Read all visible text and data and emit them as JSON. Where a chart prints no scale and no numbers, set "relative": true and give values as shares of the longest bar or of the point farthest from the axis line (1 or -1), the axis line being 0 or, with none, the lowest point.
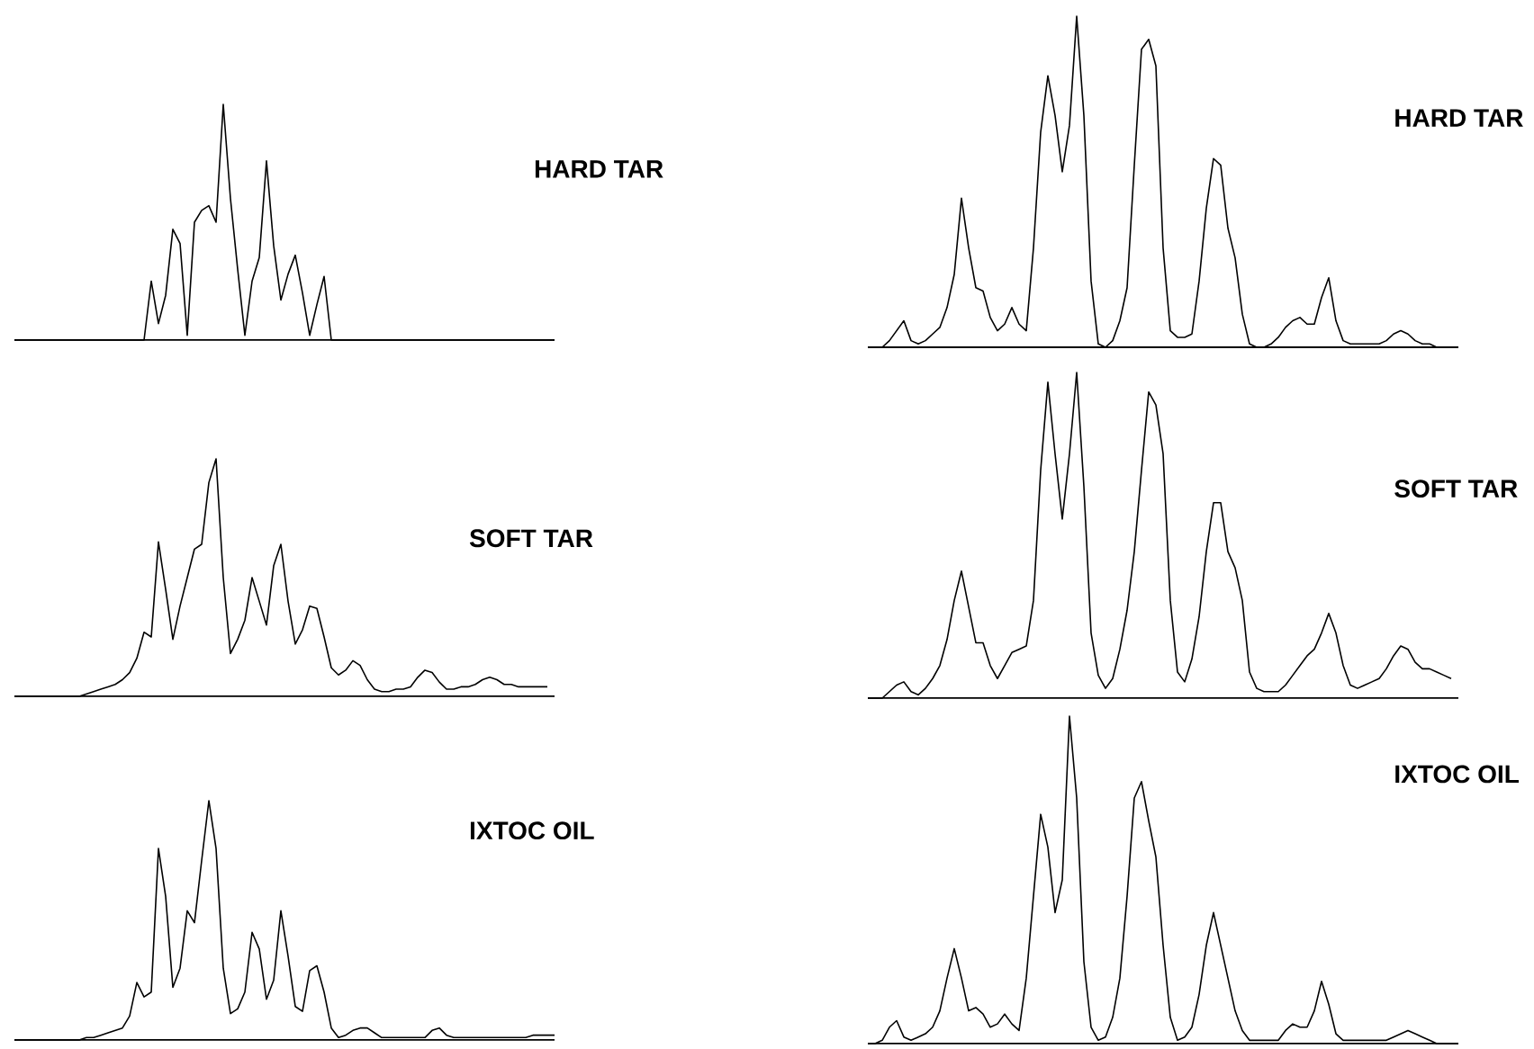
{
  "chart_data": [
    {
      "type": "line",
      "title": "HARD TAR",
      "relative": true,
      "color": "#000000",
      "categories": [
        null,
        null,
        null,
        null,
        null,
        null,
        null,
        null,
        null,
        null,
        null,
        null,
        null,
        null,
        null,
        null,
        null,
        null,
        null,
        null,
        null,
        null,
        null,
        null,
        null,
        null,
        null,
        null,
        null,
        null,
        null,
        null,
        null,
        null,
        null,
        null,
        null,
        null,
        null,
        null,
        null,
        null,
        null,
        null,
        null,
        null,
        null,
        null,
        null,
        null,
        null,
        null,
        null,
        null,
        null,
        null,
        null,
        null,
        null,
        null,
        null,
        null,
        null,
        null,
        null,
        null,
        null,
        null,
        null,
        null,
        null,
        null,
        null,
        null,
        null,
        null
      ],
      "values": [
        0,
        0,
        0,
        0,
        0,
        0,
        0,
        0,
        0,
        0,
        0,
        0,
        0,
        0,
        0,
        0,
        0,
        0,
        0,
        0.25,
        0.07,
        0.19,
        0.47,
        0.41,
        0.02,
        0.5,
        0.55,
        0.57,
        0.5,
        1.0,
        0.6,
        0.3,
        0.02,
        0.25,
        0.35,
        0.76,
        0.4,
        0.17,
        0.28,
        0.36,
        0.2,
        0.02,
        0.15,
        0.27,
        0,
        0,
        0,
        0,
        0,
        0,
        0,
        0,
        0,
        0,
        0,
        0,
        0,
        0,
        0,
        0,
        0,
        0,
        0,
        0,
        0,
        0,
        0,
        0,
        0,
        0,
        0,
        0,
        0,
        0,
        0,
        0
      ]
    },
    {
      "type": "line",
      "title": "HARD TAR",
      "relative": true,
      "color": "#000000",
      "categories": [
        null,
        null,
        null,
        null,
        null,
        null,
        null,
        null,
        null,
        null,
        null,
        null,
        null,
        null,
        null,
        null,
        null,
        null,
        null,
        null,
        null,
        null,
        null,
        null,
        null,
        null,
        null,
        null,
        null,
        null,
        null,
        null,
        null,
        null,
        null,
        null,
        null,
        null,
        null,
        null,
        null,
        null,
        null,
        null,
        null,
        null,
        null,
        null,
        null,
        null,
        null,
        null,
        null,
        null,
        null,
        null,
        null,
        null,
        null,
        null,
        null,
        null,
        null,
        null,
        null,
        null,
        null,
        null,
        null,
        null,
        null,
        null,
        null,
        null,
        null,
        null,
        null,
        null,
        null,
        null,
        null,
        null,
        null
      ],
      "values": [
        0,
        0,
        0,
        0.02,
        0.05,
        0.08,
        0.02,
        0.01,
        0.02,
        0.04,
        0.06,
        0.12,
        0.22,
        0.45,
        0.3,
        0.18,
        0.17,
        0.09,
        0.05,
        0.07,
        0.12,
        0.07,
        0.05,
        0.3,
        0.65,
        0.82,
        0.7,
        0.53,
        0.67,
        1.0,
        0.7,
        0.2,
        0.01,
        0,
        0.02,
        0.08,
        0.18,
        0.55,
        0.9,
        0.93,
        0.85,
        0.3,
        0.05,
        0.03,
        0.03,
        0.04,
        0.2,
        0.42,
        0.57,
        0.55,
        0.36,
        0.27,
        0.1,
        0.01,
        0,
        0,
        0.01,
        0.03,
        0.06,
        0.08,
        0.09,
        0.07,
        0.07,
        0.15,
        0.21,
        0.08,
        0.02,
        0.01,
        0.01,
        0.01,
        0.01,
        0.01,
        0.02,
        0.04,
        0.05,
        0.04,
        0.02,
        0.01,
        0.01,
        0,
        0,
        0,
        0
      ]
    },
    {
      "type": "line",
      "title": "SOFT TAR",
      "relative": true,
      "color": "#000000",
      "categories": [
        null,
        null,
        null,
        null,
        null,
        null,
        null,
        null,
        null,
        null,
        null,
        null,
        null,
        null,
        null,
        null,
        null,
        null,
        null,
        null,
        null,
        null,
        null,
        null,
        null,
        null,
        null,
        null,
        null,
        null,
        null,
        null,
        null,
        null,
        null,
        null,
        null,
        null,
        null,
        null,
        null,
        null,
        null,
        null,
        null,
        null,
        null,
        null,
        null,
        null,
        null,
        null,
        null,
        null,
        null,
        null,
        null,
        null,
        null,
        null,
        null,
        null,
        null,
        null,
        null,
        null,
        null,
        null,
        null,
        null,
        null,
        null,
        null,
        null,
        null,
        null
      ],
      "values": [
        0,
        0,
        0,
        0,
        0,
        0,
        0,
        0,
        0,
        0,
        0.01,
        0.02,
        0.03,
        0.04,
        0.05,
        0.07,
        0.1,
        0.16,
        0.27,
        0.25,
        0.65,
        0.45,
        0.24,
        0.38,
        0.5,
        0.62,
        0.64,
        0.9,
        1.0,
        0.5,
        0.18,
        0.24,
        0.32,
        0.5,
        0.4,
        0.3,
        0.55,
        0.64,
        0.4,
        0.22,
        0.28,
        0.38,
        0.37,
        0.25,
        0.12,
        0.09,
        0.11,
        0.15,
        0.13,
        0.07,
        0.03,
        0.02,
        0.02,
        0.03,
        0.03,
        0.04,
        0.08,
        0.11,
        0.1,
        0.06,
        0.03,
        0.03,
        0.04,
        0.04,
        0.05,
        0.07,
        0.08,
        0.07,
        0.05,
        0.05,
        0.04,
        0.04,
        0.04,
        0.04,
        0.04,
        null
      ]
    },
    {
      "type": "line",
      "title": "SOFT TAR",
      "relative": true,
      "color": "#000000",
      "categories": [
        null,
        null,
        null,
        null,
        null,
        null,
        null,
        null,
        null,
        null,
        null,
        null,
        null,
        null,
        null,
        null,
        null,
        null,
        null,
        null,
        null,
        null,
        null,
        null,
        null,
        null,
        null,
        null,
        null,
        null,
        null,
        null,
        null,
        null,
        null,
        null,
        null,
        null,
        null,
        null,
        null,
        null,
        null,
        null,
        null,
        null,
        null,
        null,
        null,
        null,
        null,
        null,
        null,
        null,
        null,
        null,
        null,
        null,
        null,
        null,
        null,
        null,
        null,
        null,
        null,
        null,
        null,
        null,
        null,
        null,
        null,
        null,
        null,
        null,
        null,
        null,
        null,
        null,
        null,
        null,
        null,
        null,
        null
      ],
      "values": [
        0,
        0,
        0,
        0.02,
        0.04,
        0.05,
        0.02,
        0.01,
        0.03,
        0.06,
        0.1,
        0.18,
        0.3,
        0.39,
        0.28,
        0.17,
        0.17,
        0.1,
        0.06,
        0.1,
        0.14,
        0.15,
        0.16,
        0.3,
        0.7,
        0.97,
        0.75,
        0.55,
        0.75,
        1.0,
        0.65,
        0.2,
        0.07,
        0.03,
        0.06,
        0.15,
        0.27,
        0.45,
        0.7,
        0.94,
        0.9,
        0.75,
        0.3,
        0.08,
        0.05,
        0.12,
        0.25,
        0.45,
        0.6,
        0.6,
        0.45,
        0.4,
        0.3,
        0.08,
        0.03,
        0.02,
        0.02,
        0.02,
        0.04,
        0.07,
        0.1,
        0.13,
        0.15,
        0.2,
        0.26,
        0.2,
        0.1,
        0.04,
        0.03,
        0.04,
        0.05,
        0.06,
        0.09,
        0.13,
        0.16,
        0.15,
        0.11,
        0.09,
        0.09,
        0.08,
        0.07,
        0.06,
        null
      ]
    },
    {
      "type": "line",
      "title": "IXTOC OIL",
      "relative": true,
      "color": "#000000",
      "categories": [
        null,
        null,
        null,
        null,
        null,
        null,
        null,
        null,
        null,
        null,
        null,
        null,
        null,
        null,
        null,
        null,
        null,
        null,
        null,
        null,
        null,
        null,
        null,
        null,
        null,
        null,
        null,
        null,
        null,
        null,
        null,
        null,
        null,
        null,
        null,
        null,
        null,
        null,
        null,
        null,
        null,
        null,
        null,
        null,
        null,
        null,
        null,
        null,
        null,
        null,
        null,
        null,
        null,
        null,
        null,
        null,
        null,
        null,
        null,
        null,
        null,
        null,
        null,
        null,
        null,
        null,
        null,
        null,
        null,
        null,
        null,
        null,
        null,
        null,
        null,
        null
      ],
      "values": [
        0,
        0,
        0,
        0,
        0,
        0,
        0,
        0,
        0,
        0,
        0.01,
        0.01,
        0.02,
        0.03,
        0.04,
        0.05,
        0.1,
        0.24,
        0.18,
        0.2,
        0.8,
        0.6,
        0.22,
        0.3,
        0.54,
        0.49,
        0.75,
        1.0,
        0.8,
        0.3,
        0.11,
        0.13,
        0.2,
        0.45,
        0.38,
        0.17,
        0.25,
        0.54,
        0.35,
        0.14,
        0.12,
        0.29,
        0.31,
        0.2,
        0.05,
        0.01,
        0.02,
        0.04,
        0.05,
        0.05,
        0.03,
        0.01,
        0.01,
        0.01,
        0.01,
        0.01,
        0.01,
        0.01,
        0.04,
        0.05,
        0.02,
        0.01,
        0.01,
        0.01,
        0.01,
        0.01,
        0.01,
        0.01,
        0.01,
        0.01,
        0.01,
        0.01,
        0.02,
        0.02,
        0.02,
        0.02
      ]
    },
    {
      "type": "line",
      "title": "IXTOC OIL",
      "relative": true,
      "color": "#000000",
      "categories": [
        null,
        null,
        null,
        null,
        null,
        null,
        null,
        null,
        null,
        null,
        null,
        null,
        null,
        null,
        null,
        null,
        null,
        null,
        null,
        null,
        null,
        null,
        null,
        null,
        null,
        null,
        null,
        null,
        null,
        null,
        null,
        null,
        null,
        null,
        null,
        null,
        null,
        null,
        null,
        null,
        null,
        null,
        null,
        null,
        null,
        null,
        null,
        null,
        null,
        null,
        null,
        null,
        null,
        null,
        null,
        null,
        null,
        null,
        null,
        null,
        null,
        null,
        null,
        null,
        null,
        null,
        null,
        null,
        null,
        null,
        null,
        null,
        null,
        null,
        null,
        null,
        null,
        null,
        null,
        null,
        null,
        null,
        null
      ],
      "values": [
        0,
        0,
        0.01,
        0.05,
        0.07,
        0.02,
        0.01,
        0.02,
        0.03,
        0.05,
        0.1,
        0.2,
        0.29,
        0.2,
        0.1,
        0.11,
        0.09,
        0.05,
        0.06,
        0.09,
        0.06,
        0.04,
        0.2,
        0.45,
        0.7,
        0.6,
        0.4,
        0.5,
        1.0,
        0.75,
        0.25,
        0.05,
        0.01,
        0.02,
        0.08,
        0.2,
        0.45,
        0.75,
        0.8,
        0.68,
        0.57,
        0.3,
        0.08,
        0.01,
        0.02,
        0.05,
        0.15,
        0.3,
        0.4,
        0.3,
        0.2,
        0.1,
        0.04,
        0.01,
        0.01,
        0.01,
        0.01,
        0.01,
        0.04,
        0.06,
        0.05,
        0.05,
        0.1,
        0.19,
        0.12,
        0.03,
        0.01,
        0.01,
        0.01,
        0.01,
        0.01,
        0.01,
        0.01,
        0.02,
        0.03,
        0.04,
        0.03,
        0.02,
        0.01,
        0,
        0,
        0,
        0
      ]
    }
  ]
}
